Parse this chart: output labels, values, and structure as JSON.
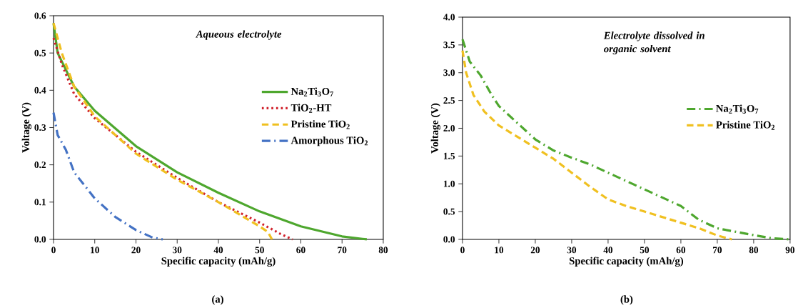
{
  "chart_data": [
    {
      "type": "line",
      "xlabel": "Specific capacity (mAh/g)",
      "ylabel": "Voltage (V)",
      "annotations": [
        "Aqueous electrolyte",
        "(a)"
      ],
      "xlim": [
        0,
        80
      ],
      "ylim": [
        0,
        0.6
      ],
      "xticks": [
        0,
        10,
        20,
        30,
        40,
        50,
        60,
        70,
        80
      ],
      "yticks": [
        {
          "value": 0,
          "label": "0.0"
        },
        0.1,
        0.2,
        0.3,
        0.4,
        0.5,
        0.6
      ],
      "legend": "right",
      "grid": false,
      "series": [
        {
          "name": "Na$_{2}$Ti$_{3}$O$_{7}$",
          "color": "#4ea72e",
          "line_style": "solid",
          "x": [
            0,
            1,
            5,
            10,
            20,
            30,
            40,
            50,
            60,
            70,
            76
          ],
          "values": [
            0.58,
            0.5,
            0.41,
            0.345,
            0.25,
            0.18,
            0.125,
            0.075,
            0.035,
            0.008,
            0
          ]
        },
        {
          "name": "TiO$_{2}$-HT",
          "color": "#d0202a",
          "line_style": "dotted",
          "x": [
            0,
            2,
            5,
            10,
            20,
            30,
            40,
            50,
            55,
            58
          ],
          "values": [
            0.54,
            0.47,
            0.39,
            0.325,
            0.235,
            0.165,
            0.1,
            0.045,
            0.015,
            0
          ]
        },
        {
          "name": "Pristine TiO$_{2}$",
          "color": "#f0c020",
          "line_style": "dashed",
          "x": [
            0,
            2,
            5,
            10,
            20,
            30,
            40,
            50,
            52,
            53
          ],
          "values": [
            0.58,
            0.5,
            0.41,
            0.33,
            0.23,
            0.16,
            0.1,
            0.035,
            0.02,
            0
          ]
        },
        {
          "name": "Amorphous TiO$_{2}$",
          "color": "#4472c4",
          "line_style": "dashdot",
          "x": [
            0,
            1,
            3,
            5,
            10,
            15,
            20,
            24,
            26.5
          ],
          "values": [
            0.34,
            0.28,
            0.24,
            0.18,
            0.11,
            0.06,
            0.025,
            0.005,
            0
          ]
        }
      ]
    },
    {
      "type": "line",
      "xlabel": "Specific capacity (mAh/g)",
      "ylabel": "Voltage (V)",
      "annotations": [
        "Electrolyte dissolved in organic solvent",
        "(b)"
      ],
      "xlim": [
        0,
        90
      ],
      "ylim": [
        0,
        4
      ],
      "xticks": [
        0,
        10,
        20,
        30,
        40,
        50,
        60,
        70,
        80,
        90
      ],
      "yticks": [
        {
          "value": 0,
          "label": "0.0"
        },
        0.5,
        {
          "value": 1,
          "label": "1.0"
        },
        1.5,
        {
          "value": 2,
          "label": "2.0"
        },
        2.5,
        {
          "value": 3,
          "label": "3.0"
        },
        3.5,
        {
          "value": 4,
          "label": "4.0"
        }
      ],
      "legend": "right",
      "grid": false,
      "series": [
        {
          "name": "Na$_{2}$Ti$_{3}$O$_{7}$",
          "color": "#4ea72e",
          "line_style": "dashdot",
          "x": [
            0,
            2,
            5,
            8,
            10,
            15,
            20,
            25,
            30,
            35,
            40,
            50,
            60,
            65,
            70,
            78,
            85,
            90
          ],
          "values": [
            3.6,
            3.2,
            2.95,
            2.6,
            2.4,
            2.1,
            1.8,
            1.6,
            1.47,
            1.35,
            1.2,
            0.9,
            0.6,
            0.35,
            0.2,
            0.1,
            0.02,
            0
          ]
        },
        {
          "name": "Pristine TiO$_{2}$",
          "color": "#f0c020",
          "line_style": "dashed",
          "x": [
            0,
            1,
            3,
            6,
            10,
            15,
            20,
            25,
            30,
            35,
            40,
            45,
            50,
            55,
            60,
            65,
            70,
            74
          ],
          "values": [
            3.4,
            3.0,
            2.6,
            2.3,
            2.05,
            1.85,
            1.65,
            1.45,
            1.2,
            0.95,
            0.72,
            0.6,
            0.5,
            0.4,
            0.3,
            0.2,
            0.07,
            0
          ]
        }
      ]
    }
  ]
}
